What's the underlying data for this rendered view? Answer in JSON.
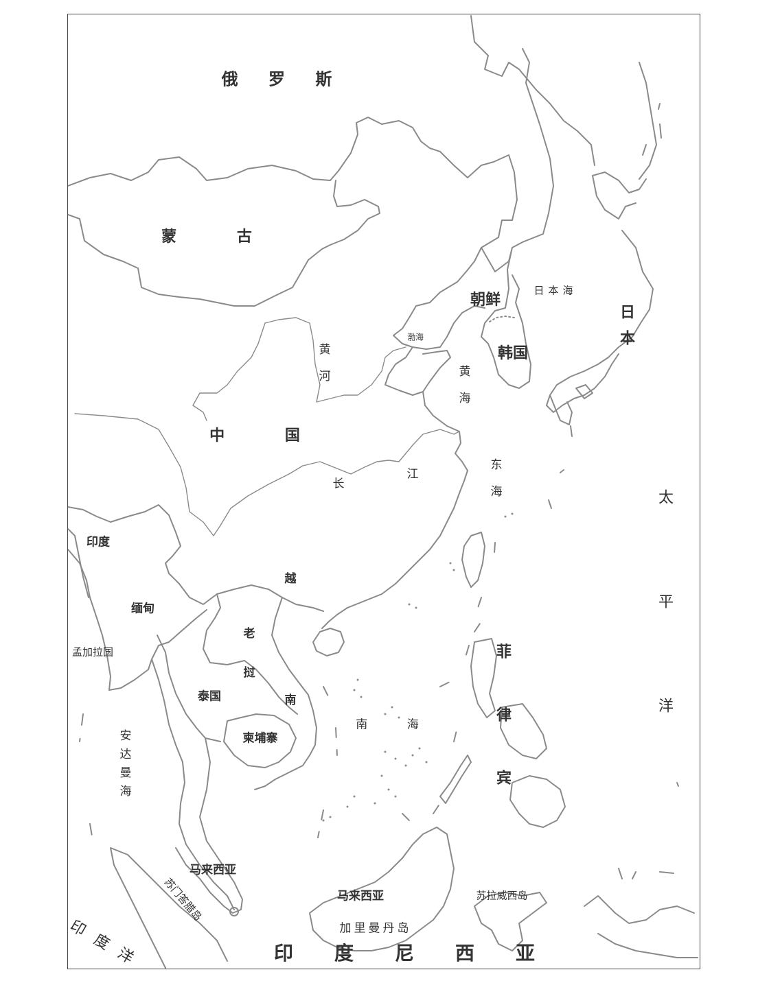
{
  "countries": {
    "russia": "俄 罗 斯",
    "mongolia": "蒙 古",
    "china": "中 国",
    "north_korea": "朝鲜",
    "south_korea": "韩国",
    "japan": "日本",
    "india": "印度",
    "myanmar": "缅甸",
    "bangladesh": "孟加拉国",
    "laos": "老挝",
    "vietnam": "越南",
    "thailand": "泰国",
    "cambodia": "柬埔寨",
    "philippines": "菲律宾",
    "malaysia_west": "马来西亚",
    "malaysia_east": "马来西亚",
    "indonesia": "印度尼西亚"
  },
  "seas": {
    "sea_of_japan": "日本海",
    "bohai": "渤海",
    "yellow_sea": "黄海",
    "east_china_sea": "东海",
    "south_china_sea": "南 海",
    "andaman_sea": "安达曼海",
    "pacific_ocean": "太平洋",
    "indian_ocean": "印度洋"
  },
  "rivers": {
    "yellow_river": "黄河",
    "yangtze_chang": "长",
    "yangtze_jiang": "江"
  },
  "islands": {
    "borneo": "加里曼丹岛",
    "sulawesi": "苏拉威西岛",
    "sumatra": "苏门答腊岛"
  },
  "style": {
    "line_color": "#8a8a8a",
    "text_color": "#333333"
  }
}
